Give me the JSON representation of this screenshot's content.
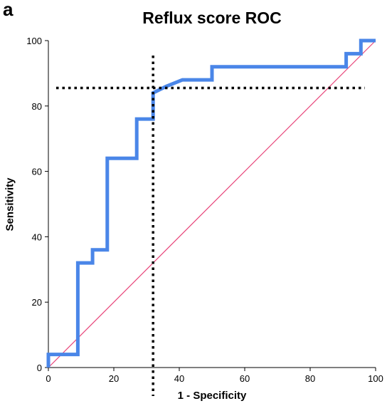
{
  "panel_label": "a",
  "chart_data": {
    "type": "line",
    "title": "Reflux score ROC",
    "xlabel": "1 - Specificity",
    "ylabel": "Sensitivity",
    "xlim": [
      0,
      100
    ],
    "ylim": [
      0,
      100
    ],
    "xticks": [
      "0",
      "20",
      "40",
      "60",
      "80",
      "100"
    ],
    "yticks": [
      "0",
      "20",
      "40",
      "60",
      "80",
      "100"
    ],
    "grid": false,
    "series": [
      {
        "color": "#4a86e8",
        "x": [
          0,
          0,
          9,
          9,
          13.5,
          13.5,
          18,
          18,
          27,
          27,
          32,
          32,
          36,
          41,
          50,
          50,
          91,
          91,
          95.5,
          95.5,
          100
        ],
        "y": [
          0,
          4,
          4,
          32,
          32,
          36,
          36,
          64,
          64,
          76,
          76,
          84,
          86,
          88,
          88,
          92,
          92,
          96,
          96,
          100,
          100
        ]
      }
    ],
    "reference_line": {
      "color": "#e8457a",
      "x": [
        0,
        100
      ],
      "y": [
        0,
        100
      ]
    },
    "cutoff": {
      "x": 32,
      "y": 85.5,
      "style": "dotted",
      "color": "#000000"
    }
  }
}
